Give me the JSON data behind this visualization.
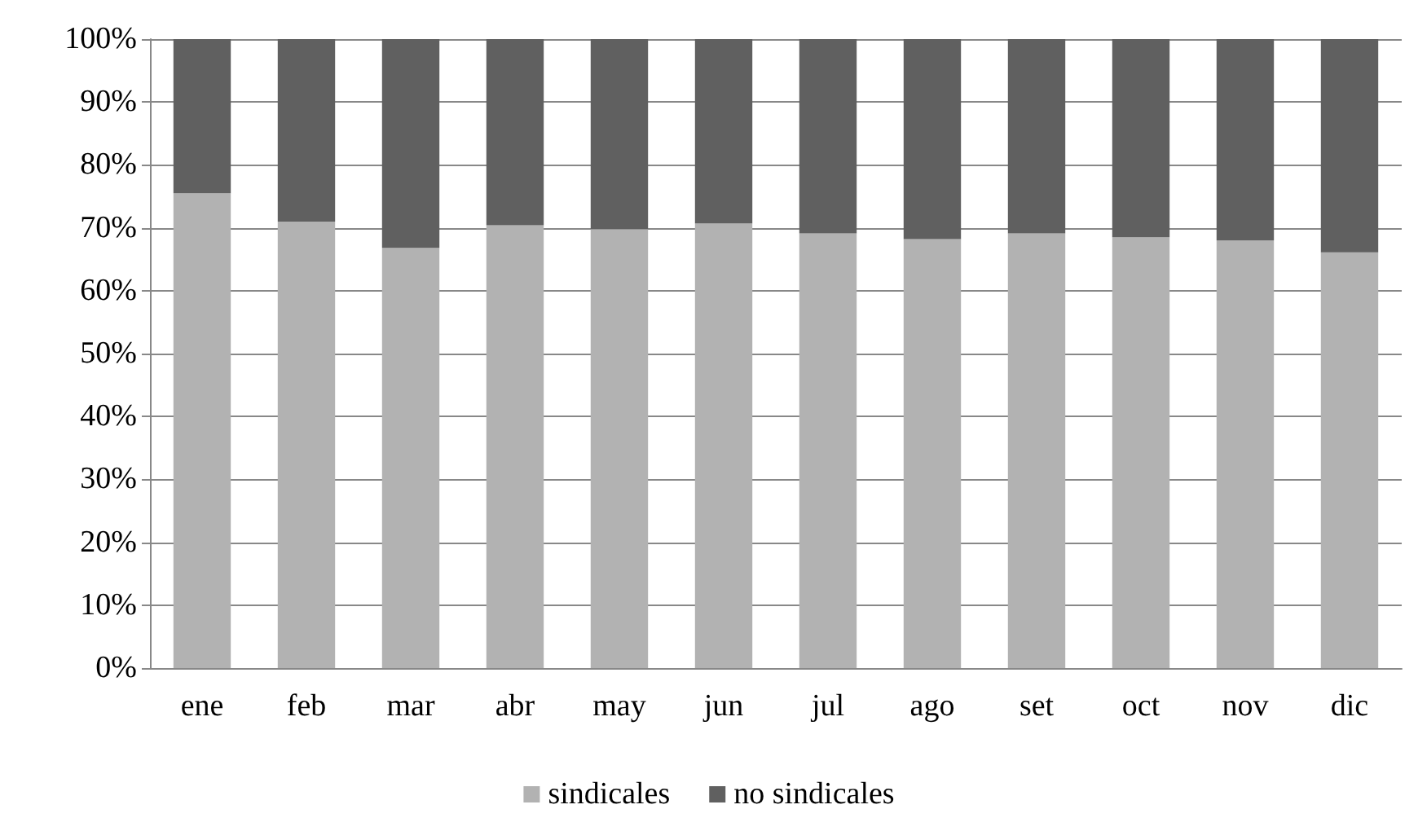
{
  "chart_data": {
    "type": "bar",
    "stacked": true,
    "categories": [
      "ene",
      "feb",
      "mar",
      "abr",
      "may",
      "jun",
      "jul",
      "ago",
      "set",
      "oct",
      "nov",
      "dic"
    ],
    "series": [
      {
        "name": "sindicales",
        "color": "#b2b2b2",
        "values": [
          75.5,
          71.0,
          66.8,
          70.4,
          69.8,
          70.7,
          69.1,
          68.2,
          69.1,
          68.5,
          68.0,
          66.1
        ]
      },
      {
        "name": "no sindicales",
        "color": "#606060",
        "values": [
          24.5,
          29.0,
          33.2,
          29.6,
          30.2,
          29.3,
          30.9,
          31.8,
          30.9,
          31.5,
          32.0,
          33.9
        ]
      }
    ],
    "ylim": [
      0,
      100
    ],
    "yticks": [
      {
        "value": 0,
        "label": "0%"
      },
      {
        "value": 10,
        "label": "10%"
      },
      {
        "value": 20,
        "label": "20%"
      },
      {
        "value": 30,
        "label": "30%"
      },
      {
        "value": 40,
        "label": "40%"
      },
      {
        "value": 50,
        "label": "50%"
      },
      {
        "value": 60,
        "label": "60%"
      },
      {
        "value": 70,
        "label": "70%"
      },
      {
        "value": 80,
        "label": "80%"
      },
      {
        "value": 90,
        "label": "90%"
      },
      {
        "value": 100,
        "label": "100%"
      }
    ],
    "grid": "y",
    "legend": "bottom"
  }
}
